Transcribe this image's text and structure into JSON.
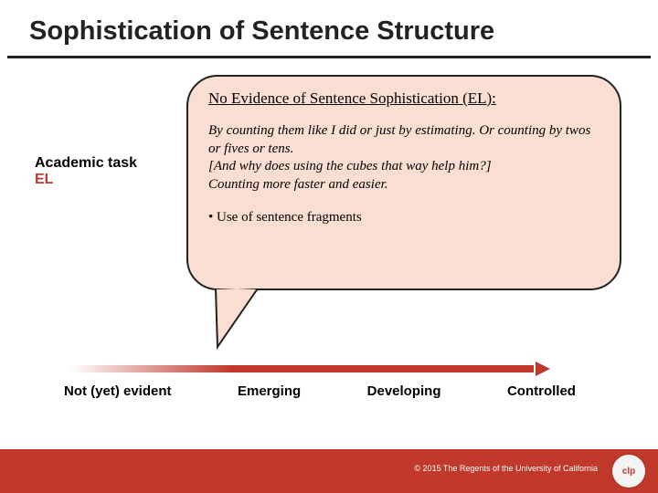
{
  "title": "Sophistication of Sentence Structure",
  "label": {
    "line1": "Academic task",
    "line2": "EL"
  },
  "bubble": {
    "heading": "No Evidence of Sentence Sophistication (EL):",
    "body_html": "By counting them like I did or just by estimating. Or counting by twos or fives or tens.<br>[And why does using the cubes that way help him?]<br>Counting more faster and easier.",
    "bullets": [
      "Use of sentence fragments"
    ]
  },
  "levels": [
    "Not (yet) evident",
    "Emerging",
    "Developing",
    "Controlled"
  ],
  "footer": {
    "copyright": "© 2015 The Regents of the University of California",
    "badge": "clp"
  },
  "colors": {
    "accent": "#c0392b",
    "bubble_fill": "#f9ded1",
    "bubble_border": "#222222",
    "text": "#222222",
    "footer_bg": "#c0392b"
  }
}
